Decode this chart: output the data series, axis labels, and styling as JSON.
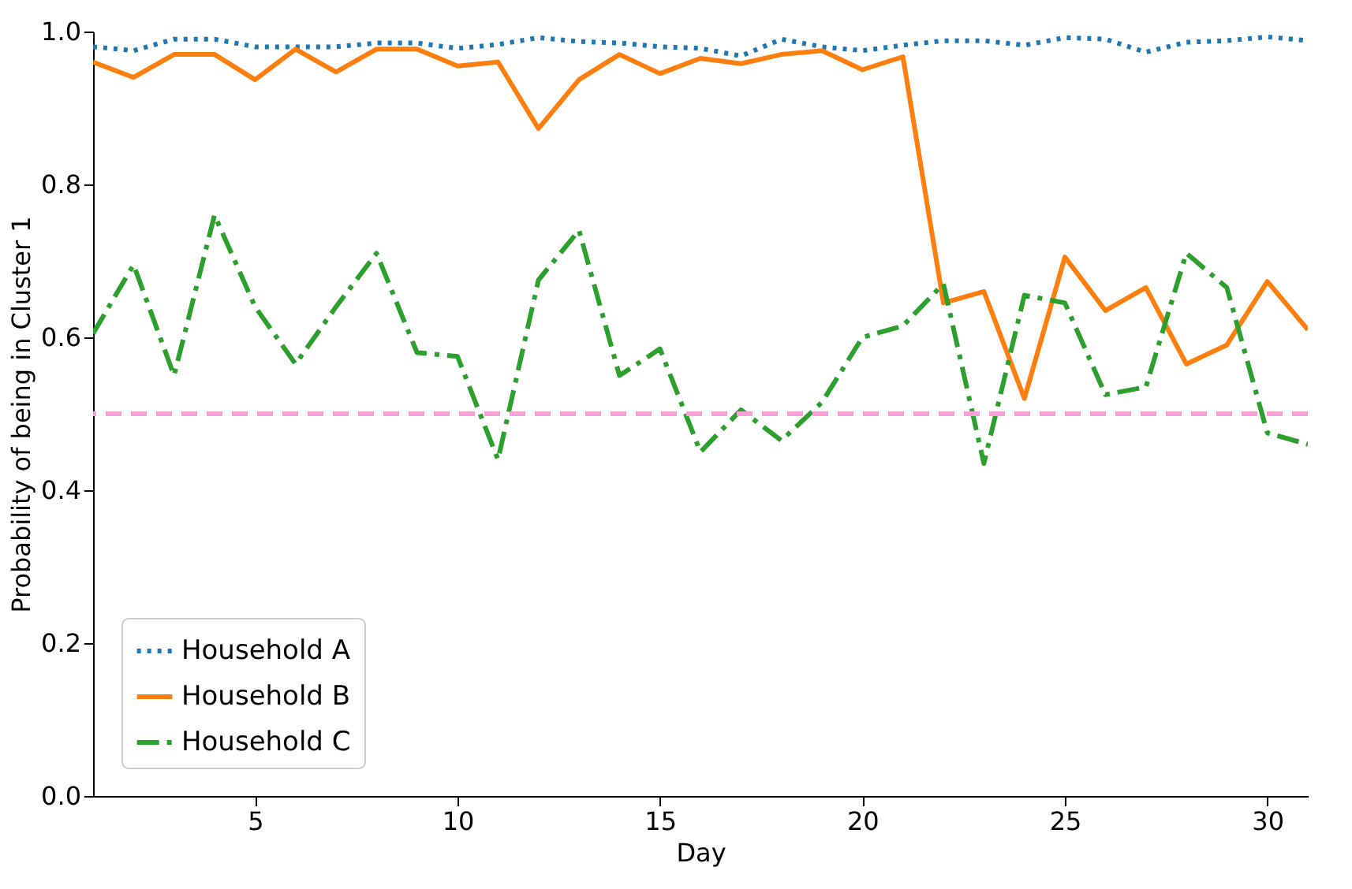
{
  "chart_data": {
    "type": "line",
    "xlabel": "Day",
    "ylabel": "Probability of being in Cluster 1",
    "x": [
      1,
      2,
      3,
      4,
      5,
      6,
      7,
      8,
      9,
      10,
      11,
      12,
      13,
      14,
      15,
      16,
      17,
      18,
      19,
      20,
      21,
      22,
      23,
      24,
      25,
      26,
      27,
      28,
      29,
      30,
      31
    ],
    "xlim": [
      1,
      31
    ],
    "xticks": [
      5,
      10,
      15,
      20,
      25,
      30
    ],
    "ylim": [
      0,
      1
    ],
    "yticks": [
      {
        "value": 0,
        "label": "0.0"
      },
      {
        "value": 0.2,
        "label": "0.2"
      },
      {
        "value": 0.4,
        "label": "0.4"
      },
      {
        "value": 0.6,
        "label": "0.6"
      },
      {
        "value": 0.8,
        "label": "0.8"
      },
      {
        "value": 1,
        "label": "1.0"
      }
    ],
    "grid": false,
    "legend": "bottom left",
    "marker": "none",
    "series": [
      {
        "name": "Household A",
        "color": "#1f77b4",
        "line_style": "dotted",
        "values": [
          0.98,
          0.975,
          0.99,
          0.99,
          0.98,
          0.98,
          0.98,
          0.985,
          0.985,
          0.978,
          0.983,
          0.992,
          0.987,
          0.985,
          0.98,
          0.978,
          0.968,
          0.99,
          0.98,
          0.975,
          0.982,
          0.988,
          0.988,
          0.982,
          0.992,
          0.99,
          0.973,
          0.986,
          0.988,
          0.993,
          0.988
        ]
      },
      {
        "name": "Household B",
        "color": "#ff7f0e",
        "line_style": "solid",
        "values": [
          0.96,
          0.94,
          0.97,
          0.97,
          0.937,
          0.977,
          0.947,
          0.977,
          0.977,
          0.955,
          0.96,
          0.873,
          0.937,
          0.97,
          0.945,
          0.965,
          0.958,
          0.97,
          0.975,
          0.95,
          0.967,
          0.645,
          0.66,
          0.52,
          0.705,
          0.635,
          0.665,
          0.565,
          0.59,
          0.673,
          0.61
        ]
      },
      {
        "name": "Household C",
        "color": "#2ca02c",
        "line_style": "dashdot",
        "values": [
          0.605,
          0.695,
          0.55,
          0.76,
          0.64,
          0.565,
          0.64,
          0.71,
          0.58,
          0.575,
          0.44,
          0.675,
          0.74,
          0.55,
          0.585,
          0.45,
          0.505,
          0.465,
          0.515,
          0.6,
          0.615,
          0.67,
          0.435,
          0.655,
          0.645,
          0.525,
          0.535,
          0.71,
          0.665,
          0.475,
          0.46
        ]
      }
    ],
    "ref_lines": [
      {
        "axis": "y",
        "value": 0.5,
        "color": "#f7a1d4",
        "line_style": "dashed"
      }
    ]
  }
}
